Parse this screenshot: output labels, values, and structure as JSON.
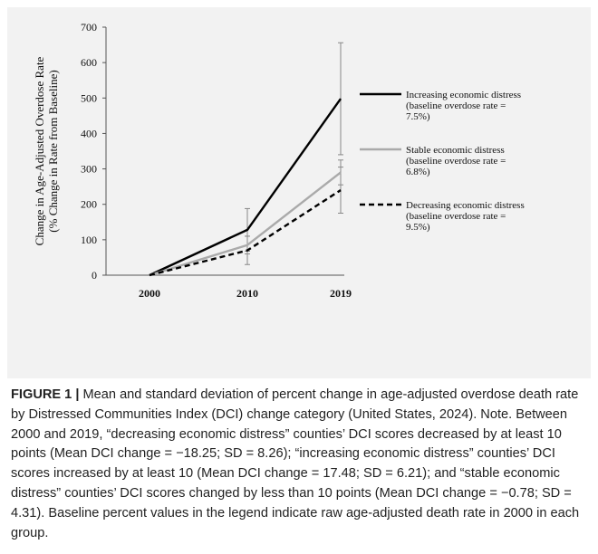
{
  "chart_data": {
    "type": "line",
    "categories": [
      "2000",
      "2010",
      "2019"
    ],
    "ylabel_line1": "Change in Age-Adjusted Overdose Rate",
    "ylabel_line2": "(% Change in Rate from Baseline)",
    "ylim": [
      0,
      700
    ],
    "yticks": [
      "0",
      "100",
      "200",
      "300",
      "400",
      "500",
      "600",
      "700"
    ],
    "grid": false,
    "legend_position": "right",
    "series": [
      {
        "name": "Increasing economic distress",
        "legend_lines": [
          "Increasing economic distress",
          "(baseline overdose rate =",
          "7.5%)"
        ],
        "values": [
          0,
          128,
          498
        ],
        "error": [
          0,
          60,
          158
        ],
        "color": "#000000",
        "style": "solid"
      },
      {
        "name": "Stable economic distress",
        "legend_lines": [
          "Stable economic distress",
          "(baseline overdose rate =",
          "6.8%)"
        ],
        "values": [
          0,
          85,
          290
        ],
        "error": [
          0,
          25,
          35
        ],
        "color": "#aaaaaa",
        "style": "solid"
      },
      {
        "name": "Decreasing economic distress",
        "legend_lines": [
          "Decreasing economic distress",
          "(baseline overdose rate =",
          "9.5%)"
        ],
        "values": [
          0,
          70,
          240
        ],
        "error": [
          0,
          40,
          65
        ],
        "color": "#000000",
        "style": "dashed"
      }
    ]
  },
  "caption": {
    "label": "FIGURE 1 |",
    "text": " Mean and standard deviation of percent change in age-adjusted overdose death rate by Distressed Communities Index (DCI) change category (United States, 2024). Note. Between 2000 and 2019, “decreasing economic distress” counties’ DCI scores decreased by at least 10 points (Mean DCI change = −18.25; SD = 8.26); “increasing economic distress” counties’ DCI scores increased by at least 10 (Mean DCI change = 17.48; SD = 6.21); and “stable economic distress” counties’ DCI scores changed by less than 10 points (Mean DCI change = −0.78; SD = 4.31). Baseline percent values in the legend indicate raw age-adjusted death rate in 2000 in each group."
  }
}
